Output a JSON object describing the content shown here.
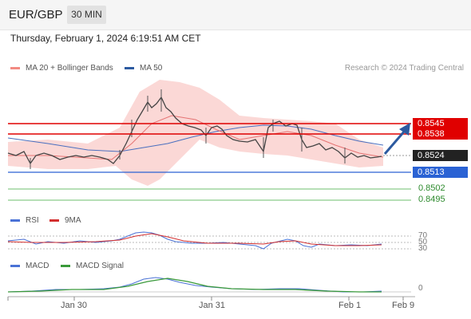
{
  "header": {
    "symbol": "EUR/GBP",
    "timeframe": "30 MIN"
  },
  "datetime": "Thursday, February 1, 2024 6:19:51 AM CET",
  "legend": {
    "bollinger": {
      "label": "MA 20 + Bollinger Bands",
      "color": "#f28b82"
    },
    "ma50": {
      "label": "MA 50",
      "color": "#2c5aa0"
    }
  },
  "credit": "Research © 2024 Trading Central",
  "price_levels": {
    "resistance_2": "0.8545",
    "resistance_1": "0.8538",
    "last": "0.8524",
    "pivot": "0.8513",
    "support_1": "0.8502",
    "support_2": "0.8495"
  },
  "colors": {
    "resistance": "#e00000",
    "pivot": "#2a62d4",
    "support": "#6cbf6c",
    "last": "#222222"
  },
  "rsi_panel": {
    "rsi_label": "RSI",
    "ma_label": "9MA",
    "level_high": "70",
    "level_mid": "50",
    "level_low": "30"
  },
  "macd_panel": {
    "macd_label": "MACD",
    "signal_label": "MACD Signal",
    "zero_label": "0"
  },
  "x_axis": {
    "labels": [
      "Jan 30",
      "Jan 31",
      "Feb 1",
      "Feb 9"
    ]
  }
}
